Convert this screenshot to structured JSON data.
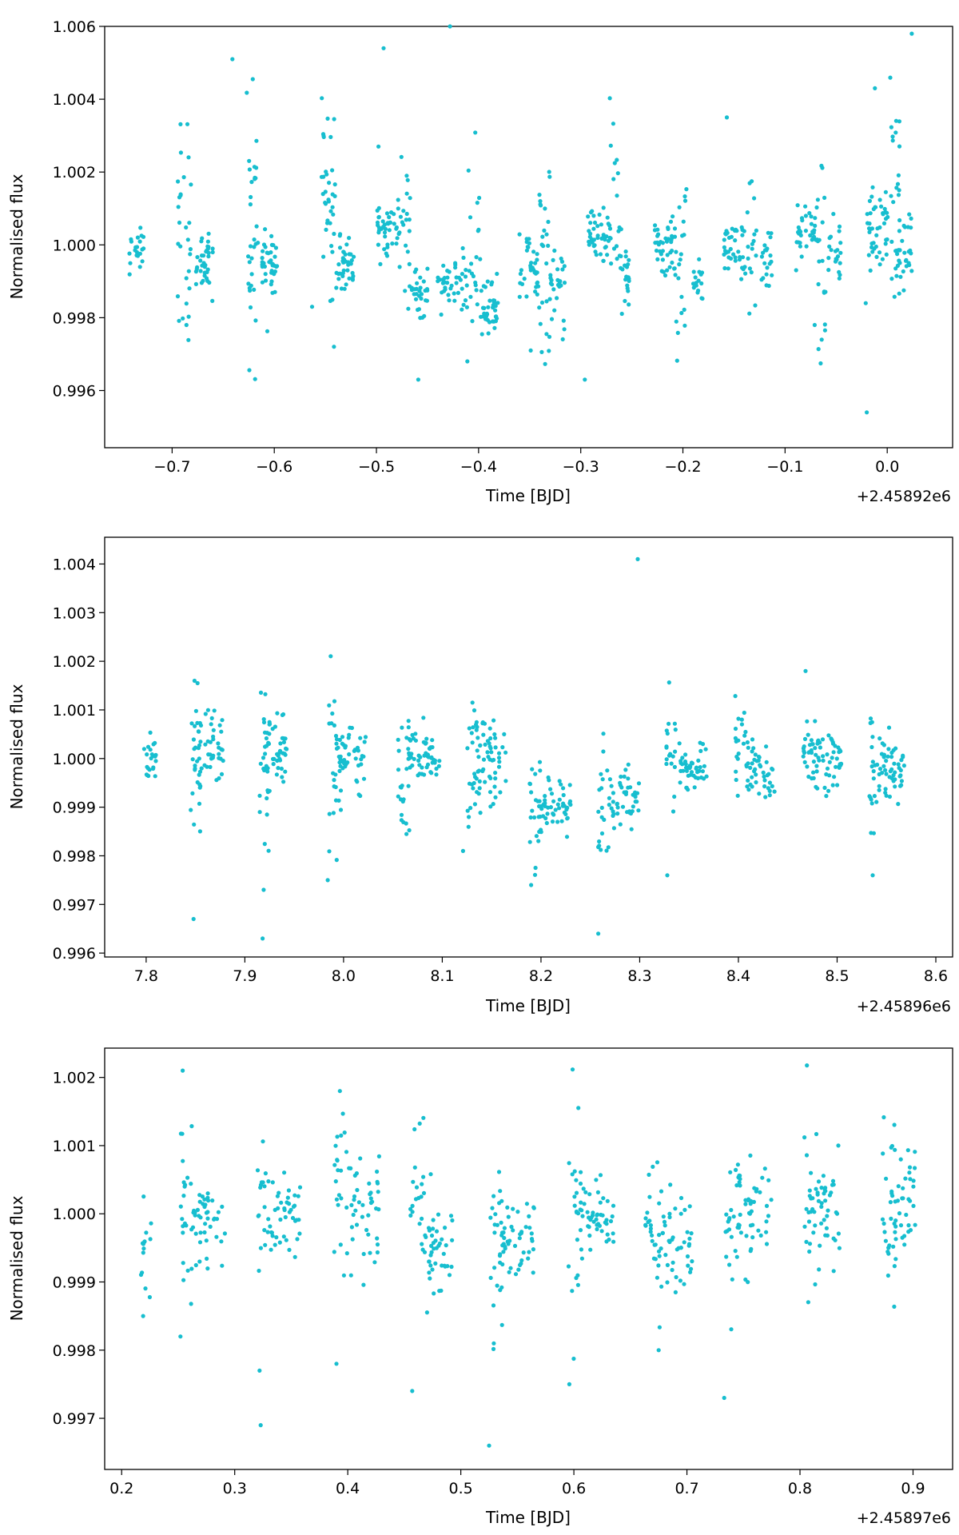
{
  "chart_data": [
    {
      "type": "scatter",
      "xlabel": "Time [BJD]",
      "ylabel": "Normalised flux",
      "x_offset_label": "+2.45892e6",
      "marker_color": "#17becf",
      "xlim": [
        -0.766,
        0.064
      ],
      "ylim": [
        0.99443,
        1.006
      ],
      "xticks": [
        -0.7,
        -0.6,
        -0.5,
        -0.4,
        -0.3,
        -0.2,
        -0.1,
        0.0
      ],
      "xtick_labels": [
        "−0.7",
        "−0.6",
        "−0.5",
        "−0.4",
        "−0.3",
        "−0.2",
        "−0.1",
        "0.0"
      ],
      "yticks": [
        0.996,
        0.998,
        1.0,
        1.002,
        1.004,
        1.006
      ],
      "ytick_labels": [
        "0.996",
        "0.998",
        "1.000",
        "1.002",
        "1.004",
        "1.006"
      ],
      "clusters": [
        {
          "x0": -0.742,
          "x1": -0.728,
          "ymean": 0.99985,
          "sd": 0.0003,
          "n": 22,
          "seed": 11
        },
        {
          "x0": -0.695,
          "x1": -0.681,
          "ymean": 1.0003,
          "sd": 0.0018,
          "n": 28,
          "seed": 12
        },
        {
          "x0": -0.678,
          "x1": -0.66,
          "ymean": 0.9995,
          "sd": 0.0004,
          "n": 36,
          "seed": 13
        },
        {
          "x0": -0.627,
          "x1": -0.613,
          "ymean": 1.0007,
          "sd": 0.0018,
          "n": 32,
          "seed": 14
        },
        {
          "x0": -0.613,
          "x1": -0.597,
          "ymean": 0.9995,
          "sd": 0.0005,
          "n": 38,
          "seed": 15
        },
        {
          "x0": -0.555,
          "x1": -0.54,
          "ymean": 1.0006,
          "sd": 0.0016,
          "n": 36,
          "seed": 16
        },
        {
          "x0": -0.54,
          "x1": -0.522,
          "ymean": 0.9995,
          "sd": 0.0004,
          "n": 40,
          "seed": 17
        },
        {
          "x0": -0.5,
          "x1": -0.478,
          "ymean": 1.0004,
          "sd": 0.0005,
          "n": 42,
          "seed": 18
        },
        {
          "x0": -0.478,
          "x1": -0.465,
          "ymean": 1.001,
          "sd": 0.0014,
          "n": 20,
          "seed": 19
        },
        {
          "x0": -0.468,
          "x1": -0.45,
          "ymean": 0.9987,
          "sd": 0.0004,
          "n": 30,
          "seed": 20
        },
        {
          "x0": -0.44,
          "x1": -0.415,
          "ymean": 0.999,
          "sd": 0.0003,
          "n": 36,
          "seed": 21
        },
        {
          "x0": -0.415,
          "x1": -0.398,
          "ymean": 0.9995,
          "sd": 0.0014,
          "n": 26,
          "seed": 22
        },
        {
          "x0": -0.398,
          "x1": -0.38,
          "ymean": 0.9983,
          "sd": 0.0004,
          "n": 38,
          "seed": 23
        },
        {
          "x0": -0.36,
          "x1": -0.342,
          "ymean": 0.9993,
          "sd": 0.0004,
          "n": 34,
          "seed": 24
        },
        {
          "x0": -0.342,
          "x1": -0.33,
          "ymean": 1.0,
          "sd": 0.0014,
          "n": 26,
          "seed": 25
        },
        {
          "x0": -0.33,
          "x1": -0.315,
          "ymean": 0.9988,
          "sd": 0.0005,
          "n": 28,
          "seed": 26
        },
        {
          "x0": -0.293,
          "x1": -0.27,
          "ymean": 1.0004,
          "sd": 0.0004,
          "n": 42,
          "seed": 27
        },
        {
          "x0": -0.272,
          "x1": -0.262,
          "ymean": 1.0015,
          "sd": 0.0012,
          "n": 16,
          "seed": 28
        },
        {
          "x0": -0.262,
          "x1": -0.25,
          "ymean": 0.9993,
          "sd": 0.0004,
          "n": 22,
          "seed": 29
        },
        {
          "x0": -0.228,
          "x1": -0.208,
          "ymean": 0.9998,
          "sd": 0.0004,
          "n": 38,
          "seed": 30
        },
        {
          "x0": -0.208,
          "x1": -0.196,
          "ymean": 0.9995,
          "sd": 0.0013,
          "n": 22,
          "seed": 31
        },
        {
          "x0": -0.19,
          "x1": -0.18,
          "ymean": 0.999,
          "sd": 0.0003,
          "n": 16,
          "seed": 32
        },
        {
          "x0": -0.16,
          "x1": -0.138,
          "ymean": 1.0,
          "sd": 0.0004,
          "n": 38,
          "seed": 33
        },
        {
          "x0": -0.138,
          "x1": -0.128,
          "ymean": 0.9998,
          "sd": 0.001,
          "n": 16,
          "seed": 34
        },
        {
          "x0": -0.123,
          "x1": -0.113,
          "ymean": 0.9996,
          "sd": 0.0004,
          "n": 20,
          "seed": 35
        },
        {
          "x0": -0.09,
          "x1": -0.068,
          "ymean": 1.0004,
          "sd": 0.0004,
          "n": 36,
          "seed": 36
        },
        {
          "x0": -0.068,
          "x1": -0.06,
          "ymean": 0.9995,
          "sd": 0.0013,
          "n": 18,
          "seed": 37
        },
        {
          "x0": -0.058,
          "x1": -0.045,
          "ymean": 0.9999,
          "sd": 0.0004,
          "n": 22,
          "seed": 38
        },
        {
          "x0": -0.02,
          "x1": 0.002,
          "ymean": 1.0005,
          "sd": 0.0005,
          "n": 44,
          "seed": 39
        },
        {
          "x0": 0.002,
          "x1": 0.012,
          "ymean": 1.0012,
          "sd": 0.0015,
          "n": 22,
          "seed": 40
        },
        {
          "x0": 0.008,
          "x1": 0.024,
          "ymean": 0.9998,
          "sd": 0.0004,
          "n": 30,
          "seed": 41
        }
      ],
      "outliers": [
        [
          -0.641,
          1.0051
        ],
        [
          -0.498,
          1.0027
        ],
        [
          -0.493,
          1.0054
        ],
        [
          -0.428,
          1.006
        ],
        [
          -0.459,
          0.9963
        ],
        [
          -0.296,
          0.9963
        ],
        [
          -0.157,
          1.0035
        ],
        [
          -0.02,
          0.9954
        ],
        [
          -0.012,
          1.0043
        ],
        [
          0.024,
          1.0058
        ],
        [
          -0.686,
          0.9978
        ],
        [
          -0.563,
          0.9983
        ],
        [
          -0.411,
          0.9968
        ],
        [
          -0.349,
          0.9971
        ],
        [
          -0.071,
          0.9978
        ],
        [
          -0.021,
          0.9984
        ]
      ]
    },
    {
      "type": "scatter",
      "xlabel": "Time [BJD]",
      "ylabel": "Normalised flux",
      "x_offset_label": "+2.45896e6",
      "marker_color": "#17becf",
      "xlim": [
        7.758,
        8.617
      ],
      "ylim": [
        0.99592,
        1.00455
      ],
      "xticks": [
        7.8,
        7.9,
        8.0,
        8.1,
        8.2,
        8.3,
        8.4,
        8.5,
        8.6
      ],
      "xtick_labels": [
        "7.8",
        "7.9",
        "8.0",
        "8.1",
        "8.2",
        "8.3",
        "8.4",
        "8.5",
        "8.6"
      ],
      "yticks": [
        0.996,
        0.997,
        0.998,
        0.999,
        1.0,
        1.001,
        1.002,
        1.003,
        1.004
      ],
      "ytick_labels": [
        "0.996",
        "0.997",
        "0.998",
        "0.999",
        "1.000",
        "1.001",
        "1.002",
        "1.003",
        "1.004"
      ],
      "clusters": [
        {
          "x0": 7.797,
          "x1": 7.81,
          "ymean": 1.0,
          "sd": 0.0003,
          "n": 22,
          "seed": 51
        },
        {
          "x0": 7.845,
          "x1": 7.855,
          "ymean": 0.9998,
          "sd": 0.0008,
          "n": 24,
          "seed": 52
        },
        {
          "x0": 7.853,
          "x1": 7.878,
          "ymean": 1.0002,
          "sd": 0.0004,
          "n": 42,
          "seed": 53
        },
        {
          "x0": 7.915,
          "x1": 7.925,
          "ymean": 0.9998,
          "sd": 0.0008,
          "n": 22,
          "seed": 54
        },
        {
          "x0": 7.92,
          "x1": 7.945,
          "ymean": 1.0002,
          "sd": 0.0004,
          "n": 42,
          "seed": 55
        },
        {
          "x0": 7.985,
          "x1": 7.998,
          "ymean": 0.9998,
          "sd": 0.0008,
          "n": 26,
          "seed": 56
        },
        {
          "x0": 7.995,
          "x1": 8.025,
          "ymean": 1.0,
          "sd": 0.0004,
          "n": 44,
          "seed": 57
        },
        {
          "x0": 8.055,
          "x1": 8.068,
          "ymean": 0.9995,
          "sd": 0.0008,
          "n": 26,
          "seed": 58
        },
        {
          "x0": 8.065,
          "x1": 8.098,
          "ymean": 1.0,
          "sd": 0.0003,
          "n": 52,
          "seed": 59
        },
        {
          "x0": 8.125,
          "x1": 8.138,
          "ymean": 0.9998,
          "sd": 0.0008,
          "n": 26,
          "seed": 60
        },
        {
          "x0": 8.132,
          "x1": 8.165,
          "ymean": 1.0001,
          "sd": 0.0004,
          "n": 52,
          "seed": 61
        },
        {
          "x0": 8.188,
          "x1": 8.2,
          "ymean": 0.999,
          "sd": 0.0008,
          "n": 22,
          "seed": 62
        },
        {
          "x0": 8.198,
          "x1": 8.23,
          "ymean": 0.999,
          "sd": 0.0003,
          "n": 48,
          "seed": 63
        },
        {
          "x0": 8.258,
          "x1": 8.27,
          "ymean": 0.9989,
          "sd": 0.0007,
          "n": 20,
          "seed": 64
        },
        {
          "x0": 8.27,
          "x1": 8.3,
          "ymean": 0.9991,
          "sd": 0.0003,
          "n": 44,
          "seed": 65
        },
        {
          "x0": 8.327,
          "x1": 8.338,
          "ymean": 1.0002,
          "sd": 0.0007,
          "n": 18,
          "seed": 66
        },
        {
          "x0": 8.34,
          "x1": 8.368,
          "ymean": 0.9998,
          "sd": 0.0003,
          "n": 44,
          "seed": 67
        },
        {
          "x0": 8.396,
          "x1": 8.41,
          "ymean": 1.0004,
          "sd": 0.0004,
          "n": 20,
          "seed": 68
        },
        {
          "x0": 8.408,
          "x1": 8.438,
          "ymean": 0.9997,
          "sd": 0.0003,
          "n": 44,
          "seed": 69
        },
        {
          "x0": 8.465,
          "x1": 8.478,
          "ymean": 1.0002,
          "sd": 0.0004,
          "n": 22,
          "seed": 70
        },
        {
          "x0": 8.475,
          "x1": 8.505,
          "ymean": 0.9999,
          "sd": 0.0003,
          "n": 48,
          "seed": 71
        },
        {
          "x0": 8.532,
          "x1": 8.545,
          "ymean": 0.9999,
          "sd": 0.0007,
          "n": 24,
          "seed": 72
        },
        {
          "x0": 8.545,
          "x1": 8.57,
          "ymean": 0.9998,
          "sd": 0.0003,
          "n": 44,
          "seed": 73
        }
      ],
      "outliers": [
        [
          7.848,
          0.9967
        ],
        [
          7.918,
          0.9963
        ],
        [
          7.919,
          0.9973
        ],
        [
          7.984,
          0.9975
        ],
        [
          8.121,
          0.9981
        ],
        [
          8.19,
          0.9974
        ],
        [
          8.258,
          0.9964
        ],
        [
          8.298,
          1.0041
        ],
        [
          8.328,
          0.9976
        ],
        [
          8.468,
          1.0018
        ],
        [
          8.536,
          0.9976
        ],
        [
          7.849,
          1.0016
        ]
      ]
    },
    {
      "type": "scatter",
      "xlabel": "Time [BJD]",
      "ylabel": "Normalised flux",
      "x_offset_label": "+2.45897e6",
      "marker_color": "#17becf",
      "xlim": [
        0.185,
        0.935
      ],
      "ylim": [
        0.99625,
        1.00243
      ],
      "xticks": [
        0.2,
        0.3,
        0.4,
        0.5,
        0.6,
        0.7,
        0.8,
        0.9
      ],
      "xtick_labels": [
        "0.2",
        "0.3",
        "0.4",
        "0.5",
        "0.6",
        "0.7",
        "0.8",
        "0.9"
      ],
      "yticks": [
        0.997,
        0.998,
        0.999,
        1.0,
        1.001,
        1.002
      ],
      "ytick_labels": [
        "0.997",
        "0.998",
        "0.999",
        "1.000",
        "1.001",
        "1.002"
      ],
      "clusters": [
        {
          "x0": 0.217,
          "x1": 0.226,
          "ymean": 0.9996,
          "sd": 0.0004,
          "n": 14,
          "seed": 81
        },
        {
          "x0": 0.252,
          "x1": 0.262,
          "ymean": 1.0003,
          "sd": 0.0006,
          "n": 22,
          "seed": 82
        },
        {
          "x0": 0.263,
          "x1": 0.292,
          "ymean": 0.9999,
          "sd": 0.0003,
          "n": 42,
          "seed": 83
        },
        {
          "x0": 0.32,
          "x1": 0.33,
          "ymean": 1.0003,
          "sd": 0.0006,
          "n": 18,
          "seed": 84
        },
        {
          "x0": 0.33,
          "x1": 0.358,
          "ymean": 1.0,
          "sd": 0.0003,
          "n": 40,
          "seed": 85
        },
        {
          "x0": 0.388,
          "x1": 0.398,
          "ymean": 1.0004,
          "sd": 0.0006,
          "n": 18,
          "seed": 86
        },
        {
          "x0": 0.398,
          "x1": 0.428,
          "ymean": 1.0,
          "sd": 0.0004,
          "n": 44,
          "seed": 87
        },
        {
          "x0": 0.455,
          "x1": 0.468,
          "ymean": 1.0002,
          "sd": 0.0006,
          "n": 20,
          "seed": 88
        },
        {
          "x0": 0.468,
          "x1": 0.495,
          "ymean": 0.9995,
          "sd": 0.0004,
          "n": 44,
          "seed": 89
        },
        {
          "x0": 0.525,
          "x1": 0.538,
          "ymean": 0.9995,
          "sd": 0.0008,
          "n": 24,
          "seed": 90
        },
        {
          "x0": 0.535,
          "x1": 0.565,
          "ymean": 0.9996,
          "sd": 0.0003,
          "n": 46,
          "seed": 91
        },
        {
          "x0": 0.595,
          "x1": 0.608,
          "ymean": 0.9999,
          "sd": 0.0008,
          "n": 24,
          "seed": 92
        },
        {
          "x0": 0.605,
          "x1": 0.635,
          "ymean": 0.9999,
          "sd": 0.0003,
          "n": 46,
          "seed": 93
        },
        {
          "x0": 0.663,
          "x1": 0.676,
          "ymean": 0.9996,
          "sd": 0.0006,
          "n": 24,
          "seed": 94
        },
        {
          "x0": 0.675,
          "x1": 0.705,
          "ymean": 0.9996,
          "sd": 0.0004,
          "n": 46,
          "seed": 95
        },
        {
          "x0": 0.733,
          "x1": 0.746,
          "ymean": 0.9998,
          "sd": 0.0006,
          "n": 24,
          "seed": 96
        },
        {
          "x0": 0.746,
          "x1": 0.775,
          "ymean": 1.0001,
          "sd": 0.0004,
          "n": 42,
          "seed": 97
        },
        {
          "x0": 0.803,
          "x1": 0.815,
          "ymean": 0.9999,
          "sd": 0.0006,
          "n": 22,
          "seed": 98
        },
        {
          "x0": 0.813,
          "x1": 0.835,
          "ymean": 1.0001,
          "sd": 0.0004,
          "n": 38,
          "seed": 99
        },
        {
          "x0": 0.873,
          "x1": 0.885,
          "ymean": 0.9999,
          "sd": 0.0006,
          "n": 22,
          "seed": 100
        },
        {
          "x0": 0.88,
          "x1": 0.903,
          "ymean": 1.0001,
          "sd": 0.0004,
          "n": 38,
          "seed": 101
        }
      ],
      "outliers": [
        [
          0.219,
          0.9985
        ],
        [
          0.252,
          0.9982
        ],
        [
          0.254,
          1.0021
        ],
        [
          0.322,
          0.9977
        ],
        [
          0.323,
          0.9969
        ],
        [
          0.39,
          0.9978
        ],
        [
          0.457,
          0.9974
        ],
        [
          0.525,
          0.9966
        ],
        [
          0.596,
          0.9975
        ],
        [
          0.733,
          0.9973
        ],
        [
          0.675,
          0.998
        ],
        [
          0.393,
          1.0018
        ]
      ]
    }
  ]
}
